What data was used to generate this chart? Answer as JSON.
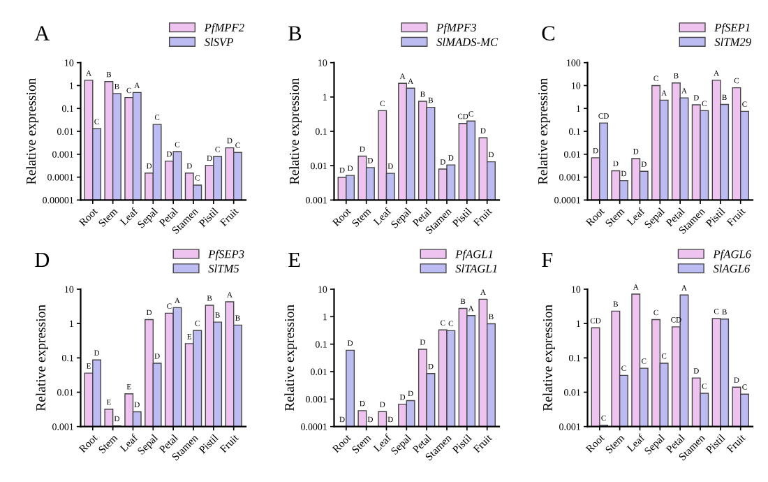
{
  "chart_data": [
    {
      "type": "bar",
      "title": "A",
      "ylabel": "Relative expression",
      "log": "y",
      "legend": "top right",
      "ylim": [
        1e-05,
        10
      ],
      "yticks": [
        {
          "value": 1e-05,
          "label": "0.00001"
        },
        {
          "value": 0.0001,
          "label": "0.0001"
        },
        {
          "value": 0.001,
          "label": "0.001"
        },
        {
          "value": 0.01,
          "label": "0.01"
        },
        {
          "value": 0.1,
          "label": "0.1"
        },
        {
          "value": 1,
          "label": "1"
        },
        {
          "value": 10,
          "label": "10"
        }
      ],
      "categories": [
        "Root",
        "Stem",
        "Leaf",
        "Sepal",
        "Petal",
        "Stamen",
        "Pistil",
        "Fruit"
      ],
      "series": [
        {
          "name": "PfMPF2",
          "color": "#eec3ef",
          "values": [
            1.7,
            1.5,
            0.3,
            0.00015,
            0.0005,
            0.00015,
            0.00033,
            0.0019
          ],
          "value_labels": [
            "A",
            "B",
            "C",
            "D",
            "D",
            "D",
            "D",
            "D"
          ]
        },
        {
          "name": "SlSVP",
          "color": "#bcbcf2",
          "values": [
            0.013,
            0.45,
            0.5,
            0.02,
            0.0013,
            4.5e-05,
            0.0008,
            0.0012
          ],
          "value_labels": [
            "C",
            "B",
            "A",
            "C",
            "C",
            "C",
            "C",
            "C"
          ]
        }
      ]
    },
    {
      "type": "bar",
      "title": "B",
      "ylabel": "Relative expression",
      "log": "y",
      "legend": "top right",
      "ylim": [
        0.001,
        10
      ],
      "yticks": [
        {
          "value": 0.001,
          "label": "0.001"
        },
        {
          "value": 0.01,
          "label": "0.01"
        },
        {
          "value": 0.1,
          "label": "0.1"
        },
        {
          "value": 1,
          "label": "1"
        },
        {
          "value": 10,
          "label": "10"
        }
      ],
      "categories": [
        "Root",
        "Stem",
        "Leaf",
        "Sepal",
        "Petal",
        "Stamen",
        "Pistil",
        "Fruit"
      ],
      "series": [
        {
          "name": "PfMPF3",
          "color": "#eec3ef",
          "values": [
            0.0046,
            0.019,
            0.4,
            2.5,
            0.75,
            0.008,
            0.17,
            0.065
          ],
          "value_labels": [
            "D",
            "D",
            "C",
            "A",
            "B",
            "D",
            "CD",
            "D"
          ]
        },
        {
          "name": "SlMADS-MC",
          "color": "#bcbcf2",
          "values": [
            0.0052,
            0.0088,
            0.006,
            1.8,
            0.5,
            0.0105,
            0.2,
            0.013
          ],
          "value_labels": [
            "D",
            "D",
            "D",
            "A",
            "B",
            "D",
            "C",
            "D"
          ]
        }
      ]
    },
    {
      "type": "bar",
      "title": "C",
      "ylabel": "Relative expression",
      "log": "y",
      "legend": "top right",
      "ylim": [
        0.0001,
        100
      ],
      "yticks": [
        {
          "value": 0.0001,
          "label": "0.0001"
        },
        {
          "value": 0.001,
          "label": "0.001"
        },
        {
          "value": 0.01,
          "label": "0.01"
        },
        {
          "value": 0.1,
          "label": "0.1"
        },
        {
          "value": 1,
          "label": "1"
        },
        {
          "value": 10,
          "label": "10"
        },
        {
          "value": 100,
          "label": "100"
        }
      ],
      "categories": [
        "Root",
        "Stem",
        "Leaf",
        "Sepal",
        "Petal",
        "Stamen",
        "Pistil",
        "Fruit"
      ],
      "series": [
        {
          "name": "PfSEP1",
          "color": "#eec3ef",
          "values": [
            0.007,
            0.0019,
            0.0065,
            10,
            13,
            1.45,
            17,
            8
          ],
          "value_labels": [
            "D",
            "D",
            "D",
            "C",
            "B",
            "D",
            "A",
            "C"
          ]
        },
        {
          "name": "SlTM29",
          "color": "#bcbcf2",
          "values": [
            0.23,
            0.0007,
            0.0018,
            2.3,
            2.9,
            0.8,
            1.5,
            0.75
          ],
          "value_labels": [
            "CD",
            "D",
            "D",
            "A",
            "A",
            "C",
            "B",
            "C"
          ]
        }
      ]
    },
    {
      "type": "bar",
      "title": "D",
      "ylabel": "Relative expression",
      "log": "y",
      "legend": "top right",
      "ylim": [
        0.001,
        10
      ],
      "yticks": [
        {
          "value": 0.001,
          "label": "0.001"
        },
        {
          "value": 0.01,
          "label": "0.01"
        },
        {
          "value": 0.1,
          "label": "0.1"
        },
        {
          "value": 1,
          "label": "1"
        },
        {
          "value": 10,
          "label": "10"
        }
      ],
      "categories": [
        "Root",
        "Stem",
        "Leaf",
        "Sepal",
        "Petal",
        "Stamen",
        "Pistil",
        "Fruit"
      ],
      "series": [
        {
          "name": "PfSEP3",
          "color": "#eec3ef",
          "values": [
            0.036,
            0.0032,
            0.009,
            1.3,
            2.0,
            0.26,
            3.4,
            4.3
          ],
          "value_labels": [
            "E",
            "E",
            "E",
            "D",
            "C",
            "E",
            "B",
            "A"
          ]
        },
        {
          "name": "SlTM5",
          "color": "#bcbcf2",
          "values": [
            0.087,
            0.00105,
            0.0027,
            0.07,
            2.9,
            0.63,
            1.1,
            0.9
          ],
          "value_labels": [
            "D",
            "D",
            "D",
            "D",
            "A",
            "C",
            "B",
            "B"
          ]
        }
      ]
    },
    {
      "type": "bar",
      "title": "E",
      "ylabel": "Relative expression",
      "log": "y",
      "legend": "top right",
      "ylim": [
        0.0001,
        10
      ],
      "yticks": [
        {
          "value": 0.0001,
          "label": "0.0001"
        },
        {
          "value": 0.001,
          "label": "0.001"
        },
        {
          "value": 0.01,
          "label": "0.01"
        },
        {
          "value": 0.1,
          "label": "0.1"
        },
        {
          "value": 1,
          "label": "1"
        },
        {
          "value": 10,
          "label": "10"
        }
      ],
      "categories": [
        "Root",
        "Stem",
        "Leaf",
        "Sepal",
        "Petal",
        "Stamen",
        "Pistil",
        "Fruit"
      ],
      "series": [
        {
          "name": "PfAGL1",
          "color": "#eec3ef",
          "values": [
            0.0001,
            0.00038,
            0.00035,
            0.00065,
            0.065,
            0.33,
            2.0,
            4.3
          ],
          "value_labels": [
            "D",
            "D",
            "D",
            "D",
            "D",
            "C",
            "B",
            "A"
          ]
        },
        {
          "name": "SlTAGL1",
          "color": "#bcbcf2",
          "values": [
            0.06,
            0.0001,
            0.0001,
            0.00088,
            0.0085,
            0.31,
            1.1,
            0.55
          ],
          "value_labels": [
            "D",
            "D",
            "D",
            "D",
            "D",
            "C",
            "A",
            "B"
          ]
        }
      ]
    },
    {
      "type": "bar",
      "title": "F",
      "ylabel": "Relative expression",
      "log": "y",
      "legend": "top right",
      "ylim": [
        0.001,
        10
      ],
      "yticks": [
        {
          "value": 0.001,
          "label": "0.001"
        },
        {
          "value": 0.01,
          "label": "0.01"
        },
        {
          "value": 0.1,
          "label": "0.1"
        },
        {
          "value": 1,
          "label": "1"
        },
        {
          "value": 10,
          "label": "10"
        }
      ],
      "categories": [
        "Root",
        "Stem",
        "Leaf",
        "Sepal",
        "Petal",
        "Stamen",
        "Pistil",
        "Fruit"
      ],
      "series": [
        {
          "name": "PfAGL6",
          "color": "#eec3ef",
          "values": [
            0.75,
            2.3,
            7.2,
            1.3,
            0.8,
            0.026,
            1.4,
            0.014
          ],
          "value_labels": [
            "CD",
            "B",
            "A",
            "C",
            "CD",
            "D",
            "C",
            "D"
          ]
        },
        {
          "name": "SlAGL6",
          "color": "#bcbcf2",
          "values": [
            0.0011,
            0.031,
            0.05,
            0.07,
            6.8,
            0.0093,
            1.35,
            0.0088
          ],
          "value_labels": [
            "C",
            "C",
            "C",
            "C",
            "A",
            "C",
            "B",
            "C"
          ]
        }
      ]
    }
  ]
}
